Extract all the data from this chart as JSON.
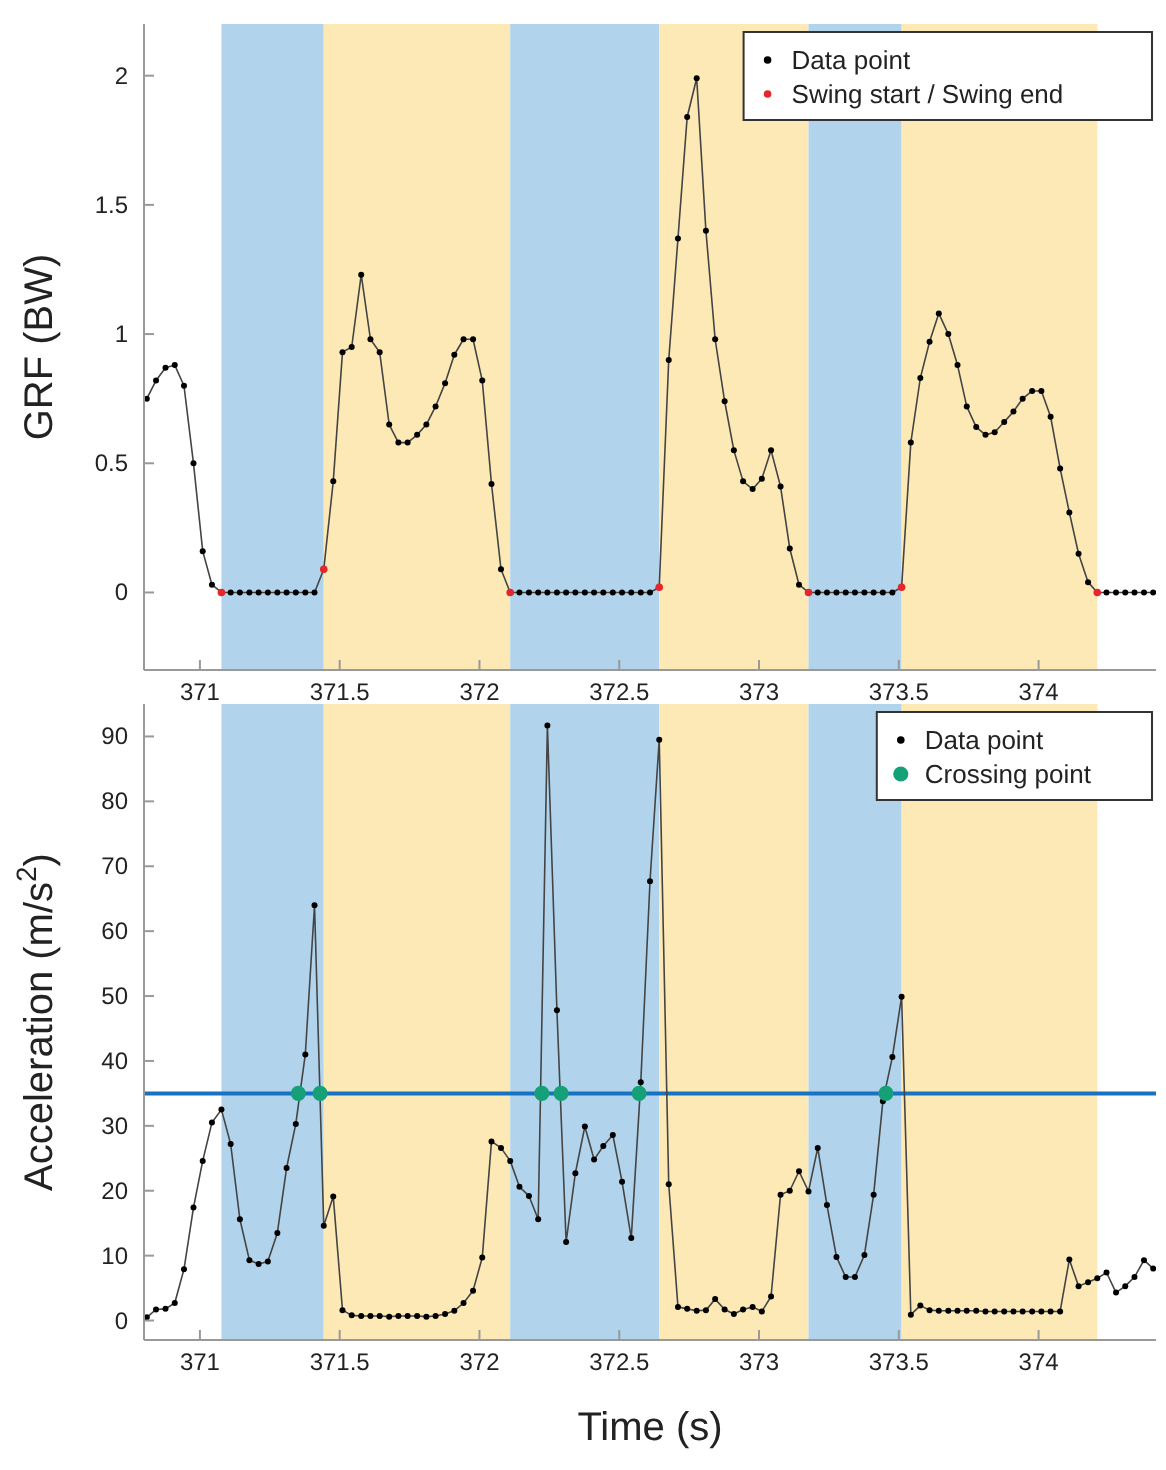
{
  "chart_data": [
    {
      "type": "line",
      "ylabel": "GRF (BW)",
      "x": [
        370.81,
        370.843,
        370.877,
        370.91,
        370.943,
        370.977,
        371.01,
        371.043,
        371.077,
        371.11,
        371.143,
        371.177,
        371.21,
        371.243,
        371.277,
        371.31,
        371.343,
        371.377,
        371.41,
        371.443,
        371.477,
        371.51,
        371.543,
        371.577,
        371.61,
        371.643,
        371.677,
        371.71,
        371.743,
        371.777,
        371.81,
        371.843,
        371.877,
        371.91,
        371.943,
        371.977,
        372.01,
        372.043,
        372.077,
        372.11,
        372.143,
        372.177,
        372.21,
        372.243,
        372.277,
        372.31,
        372.343,
        372.377,
        372.41,
        372.443,
        372.477,
        372.51,
        372.543,
        372.577,
        372.61,
        372.643,
        372.677,
        372.71,
        372.743,
        372.777,
        372.81,
        372.843,
        372.877,
        372.91,
        372.943,
        372.977,
        373.01,
        373.043,
        373.077,
        373.11,
        373.143,
        373.177,
        373.21,
        373.243,
        373.277,
        373.31,
        373.343,
        373.377,
        373.41,
        373.443,
        373.477,
        373.51,
        373.543,
        373.577,
        373.61,
        373.643,
        373.677,
        373.71,
        373.743,
        373.777,
        373.81,
        373.843,
        373.877,
        373.91,
        373.943,
        373.977,
        374.01,
        374.043,
        374.077,
        374.11,
        374.143,
        374.177,
        374.21,
        374.243,
        374.277,
        374.31,
        374.343,
        374.377,
        374.41
      ],
      "series": [
        {
          "name": "Data point",
          "color": "#000000",
          "values": [
            0.75,
            0.82,
            0.87,
            0.88,
            0.8,
            0.5,
            0.16,
            0.03,
            0,
            0,
            0,
            0,
            0,
            0,
            0,
            0,
            0,
            0,
            0,
            0.09,
            0.43,
            0.93,
            0.95,
            1.23,
            0.98,
            0.93,
            0.65,
            0.58,
            0.58,
            0.61,
            0.65,
            0.72,
            0.81,
            0.92,
            0.98,
            0.98,
            0.82,
            0.42,
            0.09,
            0,
            0,
            0,
            0,
            0,
            0,
            0,
            0,
            0,
            0,
            0,
            0,
            0,
            0,
            0,
            0,
            0.02,
            0.9,
            1.37,
            1.84,
            1.99,
            1.4,
            0.98,
            0.74,
            0.55,
            0.43,
            0.4,
            0.44,
            0.55,
            0.41,
            0.17,
            0.03,
            0,
            0,
            0,
            0,
            0,
            0,
            0,
            0,
            0,
            0,
            0.02,
            0.58,
            0.83,
            0.97,
            1.08,
            1.0,
            0.88,
            0.72,
            0.64,
            0.61,
            0.62,
            0.66,
            0.7,
            0.75,
            0.78,
            0.78,
            0.68,
            0.48,
            0.31,
            0.15,
            0.04,
            0,
            0,
            0,
            0,
            0,
            0,
            0
          ]
        },
        {
          "name": "Swing start / Swing end",
          "type": "scatter",
          "color": "#e5262a",
          "x": [
            371.077,
            371.443,
            372.11,
            372.643,
            373.177,
            373.51,
            374.21
          ],
          "values": [
            0,
            0.09,
            0,
            0.02,
            0,
            0.02,
            0
          ]
        }
      ],
      "bands": [
        {
          "axis": "x",
          "from": 371.077,
          "to": 371.443,
          "color": "#b1d4ec"
        },
        {
          "axis": "x",
          "from": 371.443,
          "to": 372.11,
          "color": "#fde9b6"
        },
        {
          "axis": "x",
          "from": 372.11,
          "to": 372.643,
          "color": "#b1d4ec"
        },
        {
          "axis": "x",
          "from": 372.643,
          "to": 373.177,
          "color": "#fde9b6"
        },
        {
          "axis": "x",
          "from": 373.177,
          "to": 373.51,
          "color": "#b1d4ec"
        },
        {
          "axis": "x",
          "from": 373.51,
          "to": 374.21,
          "color": "#fde9b6"
        }
      ],
      "xlim": [
        370.8,
        374.42
      ],
      "xticks": [
        371,
        371.5,
        372,
        372.5,
        373,
        373.5,
        374
      ],
      "ylim": [
        -0.3,
        2.2
      ],
      "yticks": [
        0,
        0.5,
        1,
        1.5,
        2
      ],
      "grid": false,
      "legend": "top right",
      "marker": "circle",
      "line_style": "solid"
    },
    {
      "type": "line",
      "xlabel": "Time (s)",
      "ylabel": "Acceleration (m/s$^{2}$)",
      "x": [
        370.81,
        370.843,
        370.877,
        370.91,
        370.943,
        370.977,
        371.01,
        371.043,
        371.077,
        371.11,
        371.143,
        371.177,
        371.21,
        371.243,
        371.277,
        371.31,
        371.343,
        371.377,
        371.41,
        371.443,
        371.477,
        371.51,
        371.543,
        371.577,
        371.61,
        371.643,
        371.677,
        371.71,
        371.743,
        371.777,
        371.81,
        371.843,
        371.877,
        371.91,
        371.943,
        371.977,
        372.01,
        372.043,
        372.077,
        372.11,
        372.143,
        372.177,
        372.21,
        372.243,
        372.277,
        372.31,
        372.343,
        372.377,
        372.41,
        372.443,
        372.477,
        372.51,
        372.543,
        372.577,
        372.61,
        372.643,
        372.677,
        372.71,
        372.743,
        372.777,
        372.81,
        372.843,
        372.877,
        372.91,
        372.943,
        372.977,
        373.01,
        373.043,
        373.077,
        373.11,
        373.143,
        373.177,
        373.21,
        373.243,
        373.277,
        373.31,
        373.343,
        373.377,
        373.41,
        373.443,
        373.477,
        373.51,
        373.543,
        373.577,
        373.61,
        373.643,
        373.677,
        373.71,
        373.743,
        373.777,
        373.81,
        373.843,
        373.877,
        373.91,
        373.943,
        373.977,
        374.01,
        374.043,
        374.077,
        374.11,
        374.143,
        374.177,
        374.21,
        374.243,
        374.277,
        374.31,
        374.343,
        374.377,
        374.41
      ],
      "series": [
        {
          "name": "Data point",
          "color": "#000000",
          "values": [
            0.5,
            1.7,
            1.8,
            2.7,
            7.9,
            17.4,
            24.6,
            30.5,
            32.5,
            27.2,
            15.6,
            9.3,
            8.7,
            9.1,
            13.5,
            23.5,
            30.3,
            41,
            64,
            14.6,
            19.1,
            1.6,
            0.8,
            0.7,
            0.7,
            0.7,
            0.6,
            0.7,
            0.7,
            0.7,
            0.6,
            0.7,
            1,
            1.5,
            2.7,
            4.6,
            9.7,
            27.6,
            26.6,
            24.6,
            20.6,
            19.2,
            15.6,
            91.7,
            47.8,
            12.1,
            22.7,
            29.9,
            24.8,
            26.9,
            28.6,
            21.4,
            12.7,
            36.7,
            67.7,
            89.5,
            21,
            2.1,
            1.8,
            1.5,
            1.6,
            3.3,
            1.7,
            1,
            1.7,
            2.1,
            1.4,
            3.7,
            19.4,
            20,
            23,
            19.9,
            26.6,
            17.8,
            9.8,
            6.7,
            6.7,
            10.1,
            19.4,
            33.8,
            40.6,
            49.9,
            0.9,
            2.3,
            1.6,
            1.5,
            1.5,
            1.5,
            1.5,
            1.5,
            1.4,
            1.4,
            1.4,
            1.4,
            1.4,
            1.4,
            1.4,
            1.4,
            1.4,
            9.4,
            5.3,
            5.9,
            6.5,
            7.4,
            4.3,
            5.3,
            6.7,
            9.3,
            8
          ]
        },
        {
          "name": "Crossing point",
          "type": "scatter",
          "color": "#16a077",
          "x": [
            371.352,
            371.43,
            372.223,
            372.292,
            372.571,
            373.454
          ],
          "values": [
            35,
            35,
            35,
            35,
            35,
            35
          ]
        }
      ],
      "bands": [
        {
          "axis": "x",
          "from": 371.077,
          "to": 371.443,
          "color": "#b1d4ec"
        },
        {
          "axis": "x",
          "from": 371.443,
          "to": 372.11,
          "color": "#fde9b6"
        },
        {
          "axis": "x",
          "from": 372.11,
          "to": 372.643,
          "color": "#b1d4ec"
        },
        {
          "axis": "x",
          "from": 372.643,
          "to": 373.177,
          "color": "#fde9b6"
        },
        {
          "axis": "x",
          "from": 373.177,
          "to": 373.51,
          "color": "#b1d4ec"
        },
        {
          "axis": "x",
          "from": 373.51,
          "to": 374.21,
          "color": "#fde9b6"
        }
      ],
      "ref_lines": [
        {
          "axis": "y",
          "value": 35,
          "color": "#1872c2",
          "line_style": "solid"
        }
      ],
      "xlim": [
        370.8,
        374.42
      ],
      "xticks": [
        371,
        371.5,
        372,
        372.5,
        373,
        373.5,
        374
      ],
      "ylim": [
        -3,
        95
      ],
      "yticks": [
        0,
        10,
        20,
        30,
        40,
        50,
        60,
        70,
        80,
        90
      ],
      "grid": false,
      "legend": "top right",
      "marker": "circle",
      "line_style": "solid"
    }
  ]
}
